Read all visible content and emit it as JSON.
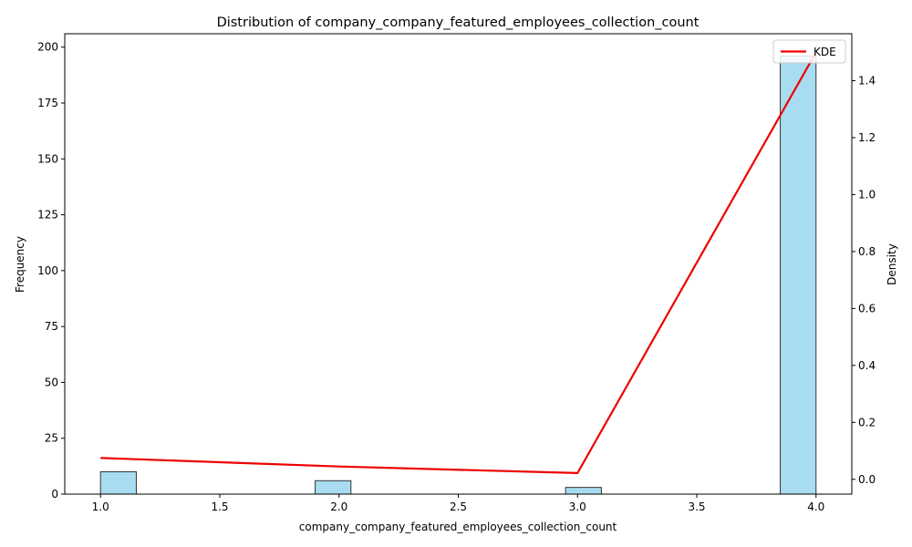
{
  "chart_data": {
    "type": "bar",
    "title": "Distribution of company_company_featured_employees_collection_count",
    "xlabel": "company_company_featured_employees_collection_count",
    "ylabel": "Frequency",
    "y2label": "Density",
    "xlim": [
      0.85,
      4.15
    ],
    "ylim": [
      0,
      206
    ],
    "y2lim": [
      -0.052,
      1.565
    ],
    "x_ticks": [
      1.0,
      1.5,
      2.0,
      2.5,
      3.0,
      3.5,
      4.0
    ],
    "x_tick_labels": [
      "1.0",
      "1.5",
      "2.0",
      "2.5",
      "3.0",
      "3.5",
      "4.0"
    ],
    "y_ticks": [
      0,
      25,
      50,
      75,
      100,
      125,
      150,
      175,
      200
    ],
    "y_tick_labels": [
      "0",
      "25",
      "50",
      "75",
      "100",
      "125",
      "150",
      "175",
      "200"
    ],
    "y2_ticks": [
      0.0,
      0.2,
      0.4,
      0.6,
      0.8,
      1.0,
      1.2,
      1.4
    ],
    "y2_tick_labels": [
      "0.0",
      "0.2",
      "0.4",
      "0.6",
      "0.8",
      "1.0",
      "1.2",
      "1.4"
    ],
    "bin_width": 0.15,
    "bars": [
      {
        "x": 1.0,
        "value": 10
      },
      {
        "x": 1.9,
        "value": 6
      },
      {
        "x": 2.95,
        "value": 3
      },
      {
        "x": 3.85,
        "value": 196
      }
    ],
    "kde": {
      "name": "KDE",
      "color": "#ee0000",
      "x": [
        1.0,
        2.0,
        3.0,
        4.0
      ],
      "y": [
        0.075,
        0.045,
        0.022,
        1.5
      ]
    },
    "bar_fill": "#a8dcf0",
    "bar_edge": "#333333",
    "legend_position": "top-right",
    "grid": false
  }
}
